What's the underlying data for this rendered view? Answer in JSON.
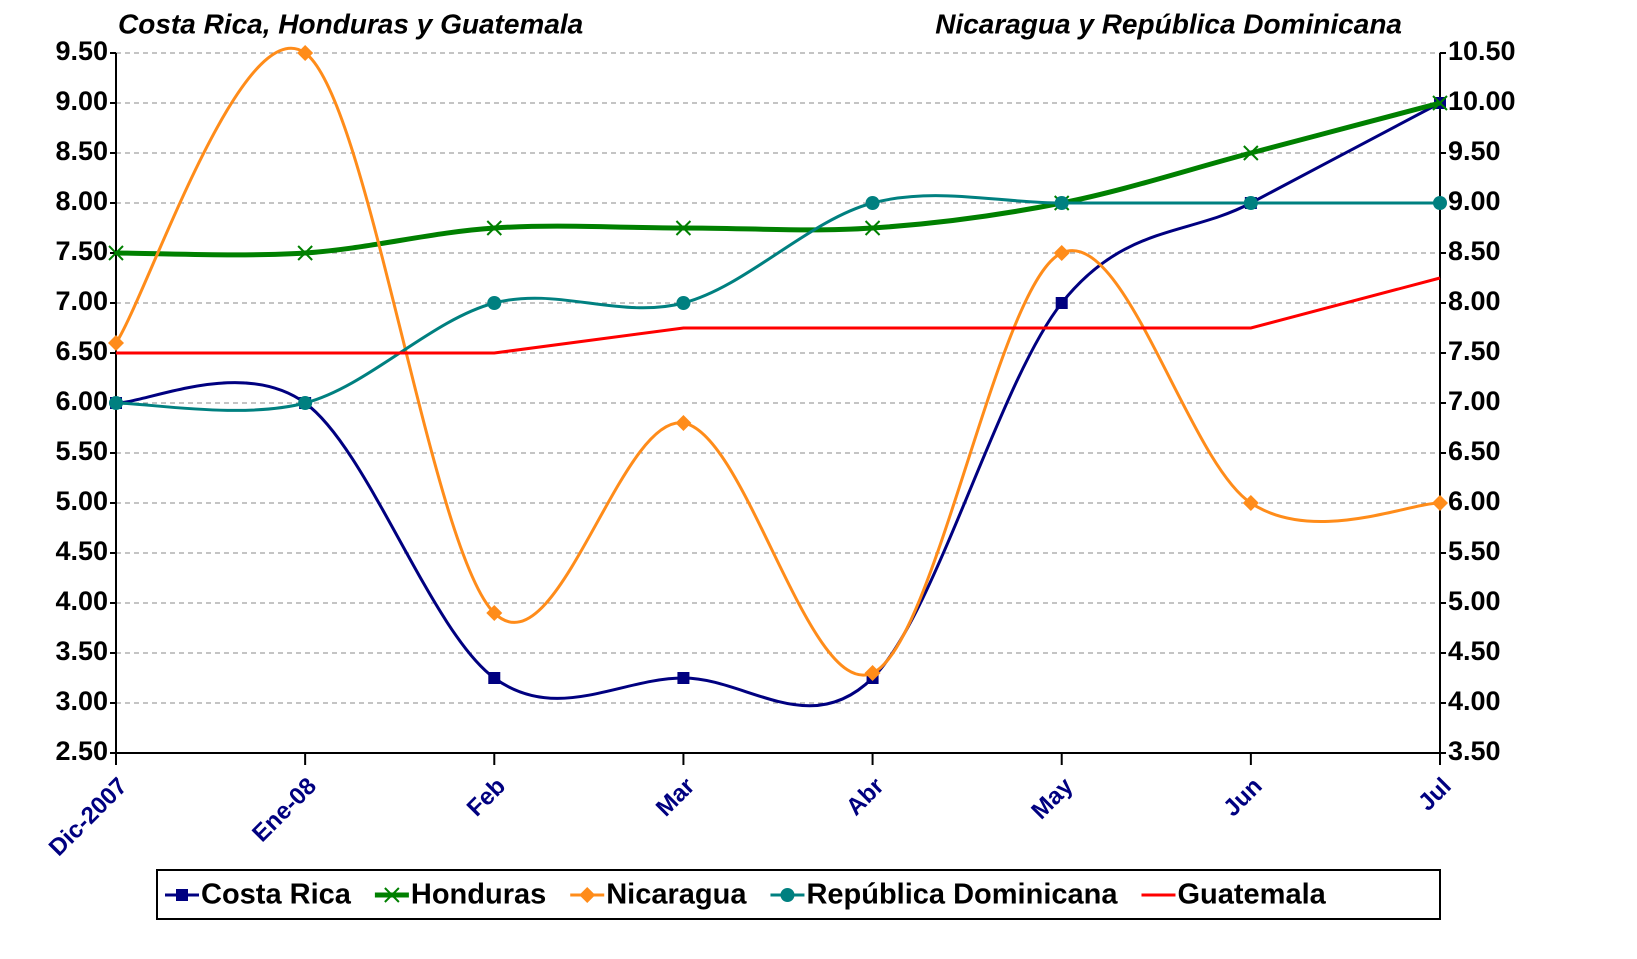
{
  "chart_data": {
    "type": "line",
    "title": "Costa Rica, Honduras y Guatemala",
    "subtitle": "Nicaragua y República Dominicana",
    "categories": [
      "Dic-2007",
      "Ene-08",
      "Feb",
      "Mar",
      "Abr",
      "May",
      "Jun",
      "Jul"
    ],
    "ylim": [
      2.5,
      9.5
    ],
    "yticks": [
      {
        "value": 2.5,
        "label": "2.50"
      },
      {
        "value": 3,
        "label": "3.00"
      },
      {
        "value": 3.5,
        "label": "3.50"
      },
      {
        "value": 4,
        "label": "4.00"
      },
      {
        "value": 4.5,
        "label": "4.50"
      },
      {
        "value": 5,
        "label": "5.00"
      },
      {
        "value": 5.5,
        "label": "5.50"
      },
      {
        "value": 6,
        "label": "6.00"
      },
      {
        "value": 6.5,
        "label": "6.50"
      },
      {
        "value": 7,
        "label": "7.00"
      },
      {
        "value": 7.5,
        "label": "7.50"
      },
      {
        "value": 8,
        "label": "8.00"
      },
      {
        "value": 8.5,
        "label": "8.50"
      },
      {
        "value": 9,
        "label": "9.00"
      },
      {
        "value": 9.5,
        "label": "9.50"
      }
    ],
    "y2lim": [
      3.5,
      10.5
    ],
    "y2ticks": [
      {
        "value": 3.5,
        "label": "3.50"
      },
      {
        "value": 4,
        "label": "4.00"
      },
      {
        "value": 4.5,
        "label": "4.50"
      },
      {
        "value": 5,
        "label": "5.00"
      },
      {
        "value": 5.5,
        "label": "5.50"
      },
      {
        "value": 6,
        "label": "6.00"
      },
      {
        "value": 6.5,
        "label": "6.50"
      },
      {
        "value": 7,
        "label": "7.00"
      },
      {
        "value": 7.5,
        "label": "7.50"
      },
      {
        "value": 8,
        "label": "8.00"
      },
      {
        "value": 8.5,
        "label": "8.50"
      },
      {
        "value": 9,
        "label": "9.00"
      },
      {
        "value": 9.5,
        "label": "9.50"
      },
      {
        "value": 10,
        "label": "10.00"
      },
      {
        "value": 10.5,
        "label": "10.50"
      }
    ],
    "grid": true,
    "legend": "bottom",
    "series": [
      {
        "name": "Costa Rica",
        "color": "#000080",
        "marker": "square",
        "smooth": true,
        "axis": "y",
        "values": [
          6.0,
          6.0,
          3.25,
          3.25,
          3.25,
          7.0,
          8.0,
          9.0
        ]
      },
      {
        "name": "Honduras",
        "color": "#008000",
        "marker": "cross",
        "smooth": true,
        "axis": "y",
        "width": 5,
        "values": [
          7.5,
          7.5,
          7.75,
          7.75,
          7.75,
          8.0,
          8.5,
          9.0
        ]
      },
      {
        "name": "Nicaragua",
        "color": "#ff8c1a",
        "marker": "diamond",
        "smooth": true,
        "axis": "y2",
        "values": [
          7.6,
          10.5,
          4.9,
          6.8,
          4.3,
          8.5,
          6.0,
          6.0
        ]
      },
      {
        "name": "República Dominicana",
        "color": "#008080",
        "marker": "circle",
        "smooth": true,
        "axis": "y2",
        "values": [
          7.0,
          7.0,
          8.0,
          8.0,
          9.0,
          9.0,
          9.0,
          9.0
        ]
      },
      {
        "name": "Guatemala",
        "color": "#ff0000",
        "marker": "none",
        "smooth": false,
        "axis": "y",
        "values": [
          6.5,
          6.5,
          6.5,
          6.75,
          6.75,
          6.75,
          6.75,
          7.25
        ]
      }
    ]
  }
}
